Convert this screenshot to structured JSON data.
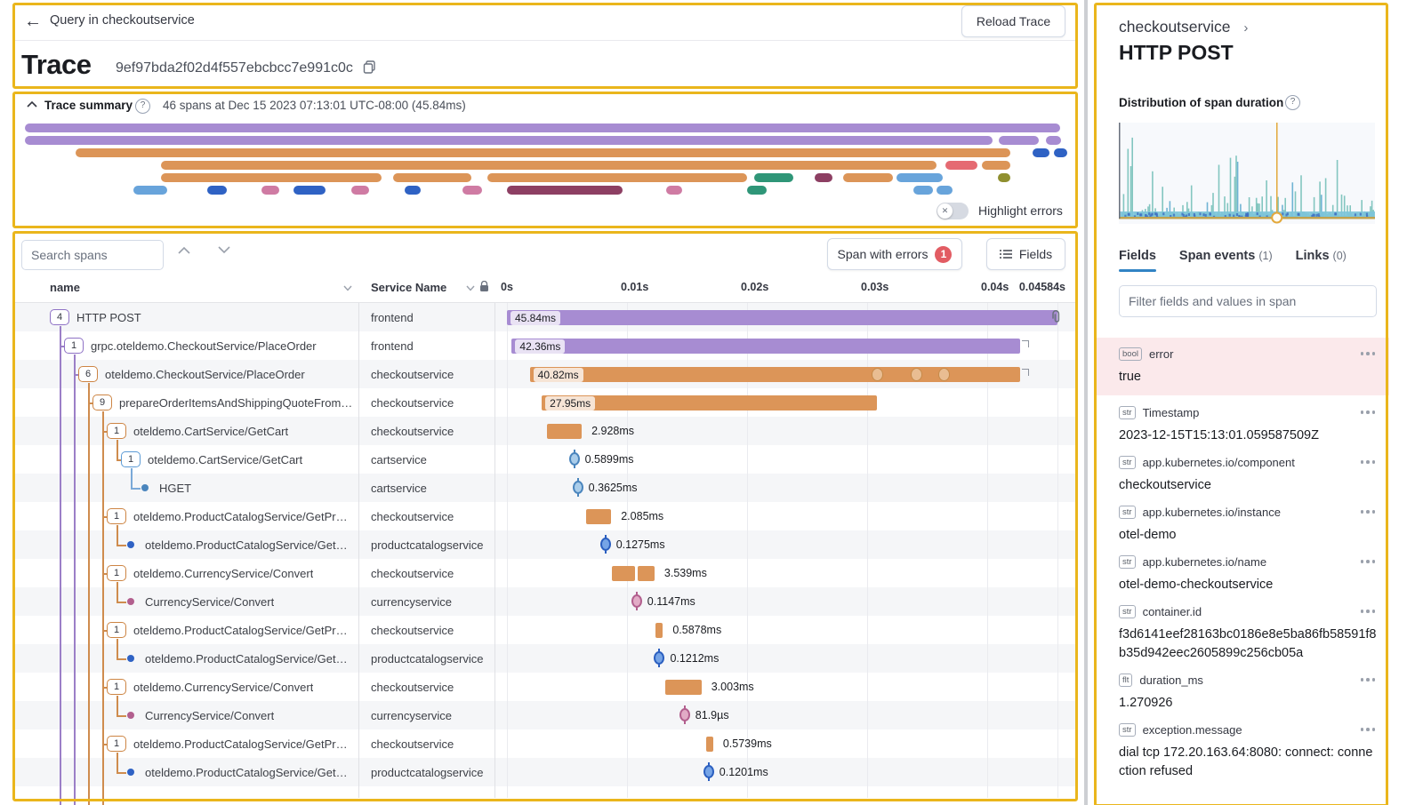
{
  "header": {
    "back_label": "Query in checkoutservice",
    "title": "Trace",
    "trace_id": "9ef97bda2f02d4f557ebcbcc7e991c0c",
    "reload_label": "Reload Trace"
  },
  "summary": {
    "title_label": "Trace summary",
    "meta": "46 spans at Dec 15 2023 07:13:01 UTC-08:00 (45.84ms)",
    "toggle_label": "Highlight errors",
    "minimap": [
      [
        28,
        139,
        1164,
        "purple"
      ],
      [
        28,
        153,
        1088,
        "purple"
      ],
      [
        1123,
        153,
        45,
        "purple"
      ],
      [
        1176,
        153,
        17,
        "purple"
      ],
      [
        85,
        167,
        1051,
        "orange"
      ],
      [
        1161,
        167,
        19,
        "dkblue"
      ],
      [
        1185,
        167,
        15,
        "dkblue"
      ],
      [
        181,
        181,
        872,
        "orange"
      ],
      [
        1063,
        181,
        36,
        "red"
      ],
      [
        1104,
        181,
        32,
        "orange"
      ],
      [
        181,
        195,
        248,
        "orange"
      ],
      [
        442,
        195,
        88,
        "orange"
      ],
      [
        548,
        195,
        292,
        "orange"
      ],
      [
        848,
        195,
        44,
        "teal"
      ],
      [
        916,
        195,
        20,
        "maroon"
      ],
      [
        948,
        195,
        56,
        "orange"
      ],
      [
        1008,
        195,
        52,
        "lightblue"
      ],
      [
        1122,
        195,
        14,
        "olive"
      ],
      [
        150,
        209,
        38,
        "lightblue"
      ],
      [
        233,
        209,
        22,
        "dkblue"
      ],
      [
        294,
        209,
        20,
        "pink"
      ],
      [
        330,
        209,
        36,
        "dkblue"
      ],
      [
        395,
        209,
        20,
        "pink"
      ],
      [
        455,
        209,
        18,
        "dkblue"
      ],
      [
        520,
        209,
        22,
        "pink"
      ],
      [
        570,
        209,
        130,
        "maroon"
      ],
      [
        749,
        209,
        18,
        "pink"
      ],
      [
        840,
        209,
        22,
        "teal"
      ],
      [
        1027,
        209,
        22,
        "lightblue"
      ],
      [
        1053,
        209,
        18,
        "lightblue"
      ]
    ]
  },
  "table": {
    "search_placeholder": "Search spans",
    "errors_label": "Span with errors",
    "errors_count": "1",
    "fields_label": "Fields",
    "col_name": "name",
    "col_service": "Service Name",
    "ticks": [
      "0s",
      "0.01s",
      "0.02s",
      "0.03s",
      "0.04s",
      "0.04584s"
    ],
    "total_ms": 45.84,
    "rows": [
      {
        "badge": "4",
        "name": "HTTP POST",
        "service": "frontend",
        "level": 0,
        "color": "purple",
        "type": "bar",
        "start": 0,
        "dur": 45.84,
        "label": "45.84ms",
        "inside": true,
        "attach": true
      },
      {
        "badge": "1",
        "name": "grpc.oteldemo.CheckoutService/PlaceOrder",
        "service": "frontend",
        "level": 1,
        "color": "purple",
        "type": "bar",
        "start": 0.4,
        "dur": 42.36,
        "label": "42.36ms",
        "inside": true,
        "endmark": true
      },
      {
        "badge": "6",
        "name": "oteldemo.CheckoutService/PlaceOrder",
        "service": "checkoutservice",
        "level": 2,
        "color": "orange",
        "type": "bar",
        "start": 1.9,
        "dur": 40.82,
        "label": "40.82ms",
        "inside": true,
        "endmark": true,
        "events": [
          30.8,
          34.1,
          36.4
        ]
      },
      {
        "badge": "9",
        "name": "prepareOrderItemsAndShippingQuoteFromCart",
        "service": "checkoutservice",
        "level": 3,
        "color": "orange",
        "type": "bar",
        "start": 2.9,
        "dur": 27.95,
        "label": "27.95ms",
        "inside": true
      },
      {
        "badge": "1",
        "name": "oteldemo.CartService/GetCart",
        "service": "checkoutservice",
        "level": 4,
        "color": "orange",
        "type": "bar",
        "start": 3.3,
        "dur": 2.928,
        "label": "2.928ms"
      },
      {
        "badge": "1",
        "name": "oteldemo.CartService/GetCart",
        "service": "cartservice",
        "level": 5,
        "color": "lightblue",
        "type": "point",
        "start": 5.6,
        "label": "0.5899ms"
      },
      {
        "dot": true,
        "name": "HGET",
        "service": "cartservice",
        "level": 6,
        "color": "lightblue",
        "type": "point",
        "start": 5.9,
        "label": "0.3625ms"
      },
      {
        "badge": "1",
        "name": "oteldemo.ProductCatalogService/GetProduct",
        "service": "checkoutservice",
        "level": 4,
        "color": "orange",
        "type": "bar",
        "start": 6.6,
        "dur": 2.085,
        "label": "2.085ms"
      },
      {
        "dot": true,
        "name": "oteldemo.ProductCatalogService/GetPro...",
        "service": "productcatalogservice",
        "level": 5,
        "color": "blue",
        "type": "point",
        "start": 8.2,
        "label": "0.1275ms"
      },
      {
        "badge": "1",
        "name": "oteldemo.CurrencyService/Convert",
        "service": "checkoutservice",
        "level": 4,
        "color": "orange",
        "type": "bar",
        "start": 8.75,
        "dur": 3.539,
        "label": "3.539ms",
        "split": true
      },
      {
        "dot": true,
        "name": "CurrencyService/Convert",
        "service": "currencyservice",
        "level": 5,
        "color": "pink",
        "type": "point",
        "start": 10.8,
        "label": "0.1147ms"
      },
      {
        "badge": "1",
        "name": "oteldemo.ProductCatalogService/GetProduct",
        "service": "checkoutservice",
        "level": 4,
        "color": "orange",
        "type": "bar",
        "start": 12.4,
        "dur": 0.5878,
        "label": "0.5878ms"
      },
      {
        "dot": true,
        "name": "oteldemo.ProductCatalogService/GetPro...",
        "service": "productcatalogservice",
        "level": 5,
        "color": "blue",
        "type": "point",
        "start": 12.7,
        "label": "0.1212ms"
      },
      {
        "badge": "1",
        "name": "oteldemo.CurrencyService/Convert",
        "service": "checkoutservice",
        "level": 4,
        "color": "orange",
        "type": "bar",
        "start": 13.2,
        "dur": 3.003,
        "label": "3.003ms"
      },
      {
        "dot": true,
        "name": "CurrencyService/Convert",
        "service": "currencyservice",
        "level": 5,
        "color": "pink",
        "type": "point",
        "start": 14.8,
        "label": "81.9µs"
      },
      {
        "badge": "1",
        "name": "oteldemo.ProductCatalogService/GetProduct",
        "service": "checkoutservice",
        "level": 4,
        "color": "orange",
        "type": "bar",
        "start": 16.6,
        "dur": 0.5739,
        "label": "0.5739ms"
      },
      {
        "dot": true,
        "name": "oteldemo.ProductCatalogService/GetPro...",
        "service": "productcatalogservice",
        "level": 5,
        "color": "blue",
        "type": "point",
        "start": 16.8,
        "label": "0.1201ms"
      }
    ]
  },
  "panel": {
    "breadcrumb": "checkoutservice",
    "title": "HTTP POST",
    "distribution_label": "Distribution of span duration",
    "tabs": [
      {
        "label": "Fields",
        "count": "",
        "active": true
      },
      {
        "label": "Span events",
        "count": "(1)",
        "active": false
      },
      {
        "label": "Links",
        "count": "(0)",
        "active": false
      }
    ],
    "filter_placeholder": "Filter fields and values in span",
    "fields": [
      {
        "type": "bool",
        "name": "error",
        "value": "true",
        "error": true
      },
      {
        "type": "str",
        "name": "Timestamp",
        "value": "2023-12-15T15:13:01.059587509Z"
      },
      {
        "type": "str",
        "name": "app.kubernetes.io/component",
        "value": "checkoutservice"
      },
      {
        "type": "str",
        "name": "app.kubernetes.io/instance",
        "value": "otel-demo"
      },
      {
        "type": "str",
        "name": "app.kubernetes.io/name",
        "value": "otel-demo-checkoutservice"
      },
      {
        "type": "str",
        "name": "container.id",
        "value": "f3d6141eef28163bc0186e8e5ba86fb58591f8b35d942eec2605899c256cb05a"
      },
      {
        "type": "flt",
        "name": "duration_ms",
        "value": "1.270926"
      },
      {
        "type": "str",
        "name": "exception.message",
        "value": "dial tcp 172.20.163.64:8080: connect: connection refused"
      }
    ]
  },
  "colors": {
    "purple": "#a78cd2",
    "orange": "#dc9558",
    "lightblue": "#68a4db",
    "dkblue": "#2f62c4",
    "pink": "#cf7ba3",
    "teal": "#2f9678",
    "maroon": "#8d3f63",
    "olive": "#8f8f2f",
    "red": "#e56a72",
    "purpleLine": "#9b7fc7",
    "orangeLine": "#cf8c4e",
    "lightblueLine": "#7aa9d8",
    "error": "#e25c63",
    "tab_accent": "#3183c4",
    "annotation": "#eab61c",
    "hist_marker": "#e3a93c",
    "hist_bar": "#6fbdb5"
  },
  "points": {
    "lightblue": {
      "fill": "#aacdea",
      "border": "#4a85bd"
    },
    "blue": {
      "fill": "#76a4e6",
      "border": "#2b5fc0"
    },
    "pink": {
      "fill": "#e2abc6",
      "border": "#b25f8e"
    }
  },
  "badges": {
    "purple": "#8f72c5",
    "orange": "#cd8544",
    "lightblue": "#5d9bd5"
  }
}
